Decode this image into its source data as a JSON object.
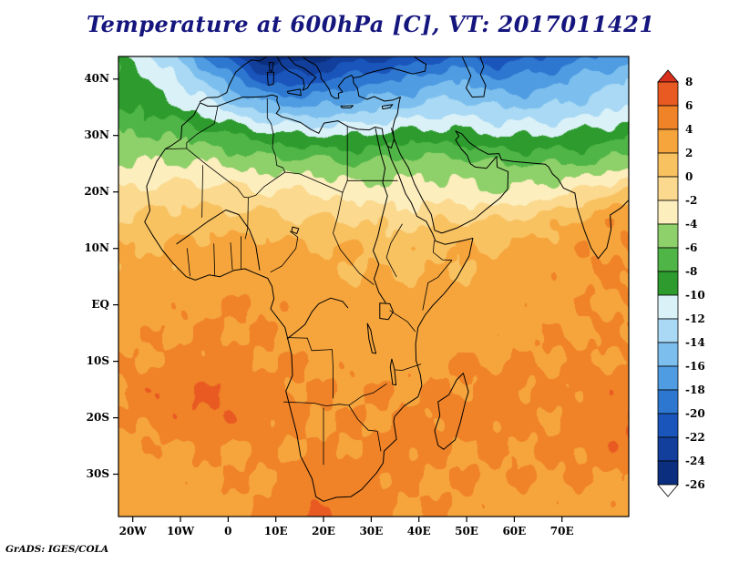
{
  "title": "Temperature at 600hPa [C], VT: 2017011421",
  "credit": "GrADS: IGES/COLA",
  "axes": {
    "y": [
      {
        "label": "40N",
        "lat": 40
      },
      {
        "label": "30N",
        "lat": 30
      },
      {
        "label": "20N",
        "lat": 20
      },
      {
        "label": "10N",
        "lat": 10
      },
      {
        "label": "EQ",
        "lat": 0
      },
      {
        "label": "10S",
        "lat": -10
      },
      {
        "label": "20S",
        "lat": -20
      },
      {
        "label": "30S",
        "lat": -30
      }
    ],
    "x": [
      {
        "label": "20W",
        "lon": -20
      },
      {
        "label": "10W",
        "lon": -10
      },
      {
        "label": "0",
        "lon": 0
      },
      {
        "label": "10E",
        "lon": 10
      },
      {
        "label": "20E",
        "lon": 20
      },
      {
        "label": "30E",
        "lon": 30
      },
      {
        "label": "40E",
        "lon": 40
      },
      {
        "label": "50E",
        "lon": 50
      },
      {
        "label": "60E",
        "lon": 60
      },
      {
        "label": "70E",
        "lon": 70
      }
    ]
  },
  "colorbar": {
    "labels": [
      "8",
      "6",
      "4",
      "2",
      "0",
      "-2",
      "-4",
      "-6",
      "-8",
      "-10",
      "-12",
      "-14",
      "-16",
      "-18",
      "-20",
      "-22",
      "-24",
      "-26"
    ],
    "band_colors_desc": [
      "#e85a22",
      "#f08228",
      "#f6a53c",
      "#f9c261",
      "#fbd98e",
      "#fdeebe",
      "#8ed069",
      "#4fb547",
      "#2d9b2d",
      "#daf1f8",
      "#a9d9f4",
      "#7cbfee",
      "#4f9ce2",
      "#2e77d0",
      "#1a55bb",
      "#123f9b",
      "#0b2f7e"
    ],
    "over_color": "#d8301c",
    "under_color": "#ffffff"
  },
  "chart_data": {
    "type": "heatmap",
    "title": "Temperature at 600hPa [C], VT: 2017011421",
    "variable": "Temperature",
    "level_hpa": 600,
    "units": "C",
    "valid_time": "2017011421",
    "legend_position": "right",
    "region": {
      "lon_min": -23,
      "lon_max": 84,
      "lat_min": -37.5,
      "lat_max": 44
    },
    "contour_levels": [
      -26,
      -24,
      -22,
      -20,
      -18,
      -16,
      -14,
      -12,
      -10,
      -8,
      -6,
      -4,
      -2,
      0,
      2,
      4,
      6,
      8
    ],
    "lons": [
      -23,
      -13,
      -3,
      7,
      17,
      27,
      37,
      47,
      57,
      67,
      77,
      84
    ],
    "lats": [
      44,
      40,
      35,
      30,
      25,
      20,
      15,
      10,
      5,
      0,
      -5,
      -10,
      -15,
      -20,
      -25,
      -30,
      -37.5
    ],
    "values_c": [
      [
        -9,
        -13,
        -19,
        -25,
        -25,
        -23,
        -22,
        -20,
        -21,
        -20,
        -18,
        -17
      ],
      [
        -8,
        -11,
        -15,
        -21,
        -21,
        -19,
        -18,
        -16,
        -18,
        -17,
        -15,
        -14
      ],
      [
        -8,
        -9,
        -12,
        -15,
        -16,
        -15,
        -14,
        -13,
        -14,
        -14,
        -13,
        -12
      ],
      [
        -6,
        -6,
        -7,
        -9,
        -10,
        -10,
        -9,
        -9,
        -10,
        -10,
        -9,
        -8
      ],
      [
        -4,
        -4,
        -4,
        -5,
        -5,
        -6,
        -5,
        -5,
        -6,
        -6,
        -6,
        -5
      ],
      [
        -2,
        -1,
        -1,
        -2,
        -2,
        -3,
        -3,
        -3,
        -4,
        -3,
        -1,
        1
      ],
      [
        0,
        1,
        1,
        1,
        0,
        0,
        -1,
        0,
        0,
        1,
        3,
        4
      ],
      [
        2,
        2,
        3,
        3,
        2,
        2,
        1,
        2,
        2,
        3,
        4,
        4
      ],
      [
        3,
        3,
        3,
        3,
        3,
        2,
        2,
        2,
        3,
        3,
        4,
        4
      ],
      [
        3,
        3,
        4,
        4,
        3,
        3,
        3,
        3,
        3,
        3,
        4,
        4
      ],
      [
        3,
        4,
        4,
        4,
        3,
        3,
        3,
        3,
        3,
        4,
        4,
        4
      ],
      [
        4,
        4,
        5,
        4,
        4,
        3,
        3,
        4,
        4,
        4,
        4,
        4
      ],
      [
        4,
        6,
        6,
        5,
        4,
        4,
        4,
        4,
        5,
        4,
        5,
        5
      ],
      [
        4,
        5,
        6,
        5,
        4,
        4,
        4,
        5,
        5,
        4,
        5,
        6
      ],
      [
        3,
        4,
        4,
        4,
        4,
        4,
        5,
        4,
        4,
        4,
        5,
        6
      ],
      [
        3,
        3,
        4,
        4,
        5,
        5,
        4,
        4,
        4,
        4,
        4,
        4
      ],
      [
        3,
        3,
        3,
        4,
        6,
        5,
        4,
        4,
        3,
        3,
        3,
        3
      ]
    ]
  }
}
